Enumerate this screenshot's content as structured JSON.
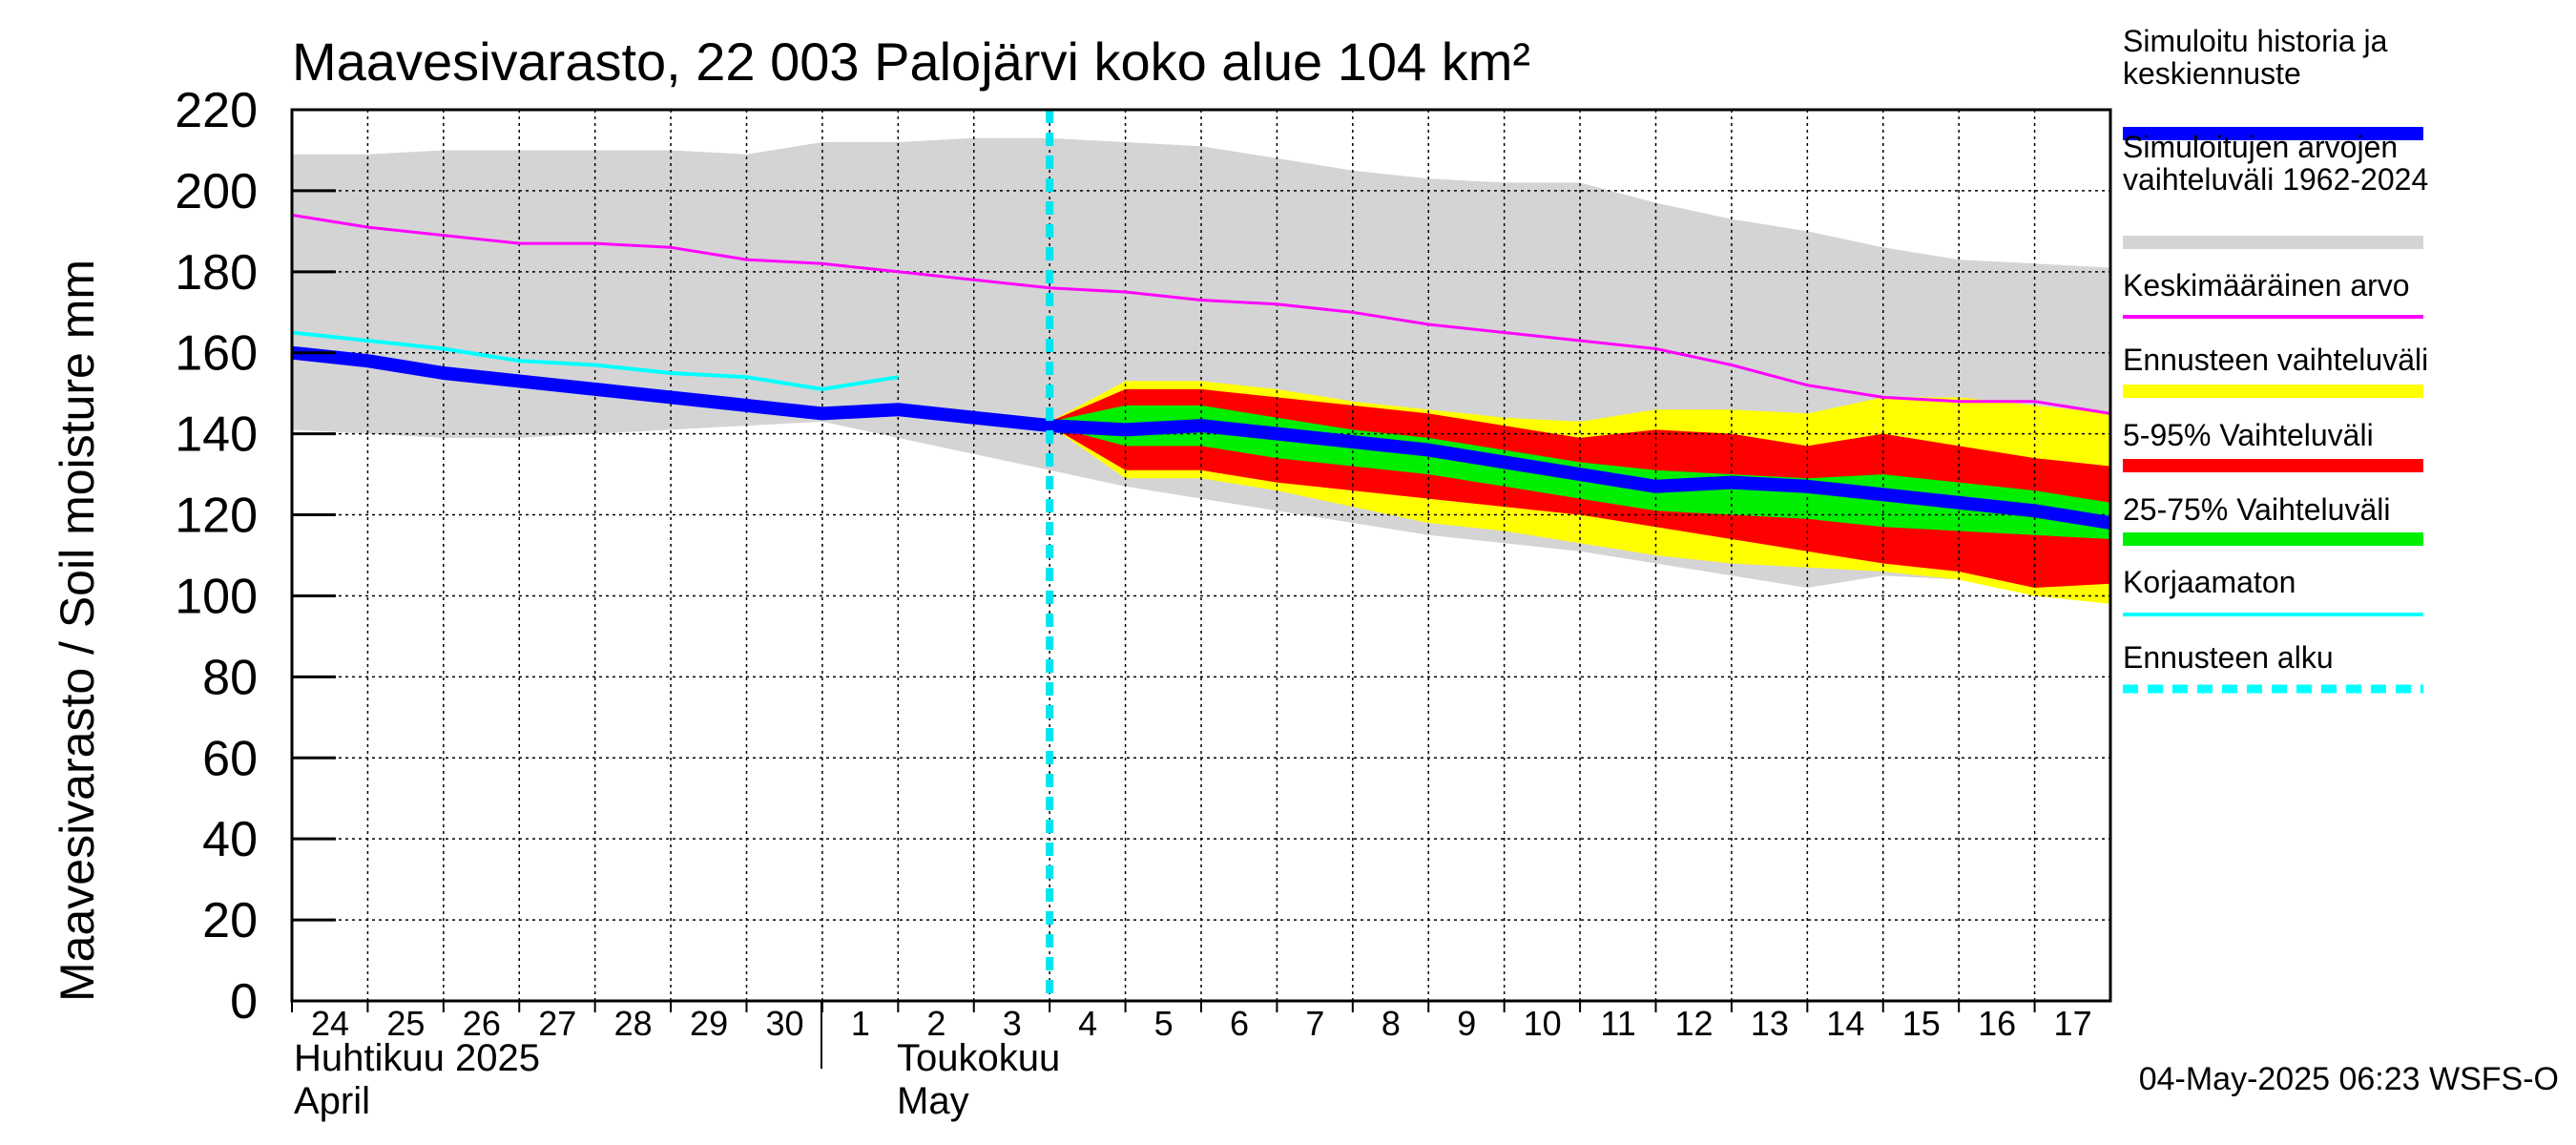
{
  "chart_data": {
    "type": "area",
    "title": "Maavesivarasto, 22 003 Palojärvi koko alue 104 km²",
    "ylabel": "Maavesivarasto / Soil moisture   mm",
    "ylim": [
      0,
      220
    ],
    "yticks": [
      0,
      20,
      40,
      60,
      80,
      100,
      120,
      140,
      160,
      180,
      200,
      220
    ],
    "x_day_range": [
      0,
      24
    ],
    "x_ticks": [
      {
        "day": 0,
        "label": "24"
      },
      {
        "day": 1,
        "label": "25"
      },
      {
        "day": 2,
        "label": "26"
      },
      {
        "day": 3,
        "label": "27"
      },
      {
        "day": 4,
        "label": "28"
      },
      {
        "day": 5,
        "label": "29"
      },
      {
        "day": 6,
        "label": "30"
      },
      {
        "day": 7,
        "label": "1"
      },
      {
        "day": 8,
        "label": "2"
      },
      {
        "day": 9,
        "label": "3"
      },
      {
        "day": 10,
        "label": "4"
      },
      {
        "day": 11,
        "label": "5"
      },
      {
        "day": 12,
        "label": "6"
      },
      {
        "day": 13,
        "label": "7"
      },
      {
        "day": 14,
        "label": "8"
      },
      {
        "day": 15,
        "label": "9"
      },
      {
        "day": 16,
        "label": "10"
      },
      {
        "day": 17,
        "label": "11"
      },
      {
        "day": 18,
        "label": "12"
      },
      {
        "day": 19,
        "label": "13"
      },
      {
        "day": 20,
        "label": "14"
      },
      {
        "day": 21,
        "label": "15"
      },
      {
        "day": 22,
        "label": "16"
      },
      {
        "day": 23,
        "label": "17"
      }
    ],
    "month_labels": {
      "april_fi": "Huhtikuu  2025",
      "april_en": "April",
      "may_fi": "Toukokuu",
      "may_en": "May"
    },
    "forecast_start_day": 10,
    "series": [
      {
        "name": "Simuloitujen arvojen vaihteluväli 1962-2024",
        "kind": "band",
        "color": "#d4d4d4",
        "x": [
          0,
          1,
          2,
          3,
          4,
          5,
          6,
          7,
          8,
          9,
          10,
          11,
          12,
          13,
          14,
          15,
          16,
          17,
          18,
          19,
          20,
          21,
          22,
          23,
          24
        ],
        "upper": [
          209,
          209,
          210,
          210,
          210,
          210,
          209,
          212,
          212,
          213,
          213,
          212,
          211,
          208,
          205,
          203,
          202,
          202,
          197,
          193,
          190,
          186,
          183,
          182,
          181
        ],
        "lower": [
          141,
          140,
          139,
          139,
          140,
          141,
          142,
          143,
          139,
          135,
          131,
          127,
          124,
          121,
          118,
          115,
          113,
          111,
          108,
          105,
          102,
          105,
          104,
          103,
          103
        ]
      },
      {
        "name": "Ennusteen vaihteluväli",
        "kind": "band",
        "color": "#ffff00",
        "x": [
          10,
          11,
          12,
          13,
          14,
          15,
          16,
          17,
          18,
          19,
          20,
          21,
          22,
          23,
          24
        ],
        "upper": [
          143,
          153,
          153,
          151,
          148,
          146,
          144,
          143,
          146,
          146,
          145,
          149,
          149,
          147,
          145
        ],
        "lower": [
          142,
          129,
          129,
          126,
          122,
          118,
          116,
          113,
          110,
          108,
          107,
          106,
          104,
          100,
          98
        ]
      },
      {
        "name": "5-95% Vaihteluväli",
        "kind": "band",
        "color": "#ff0000",
        "x": [
          10,
          11,
          12,
          13,
          14,
          15,
          16,
          17,
          18,
          19,
          20,
          21,
          22,
          23,
          24
        ],
        "upper": [
          143,
          151,
          151,
          149,
          147,
          145,
          142,
          139,
          141,
          140,
          137,
          140,
          137,
          134,
          132
        ],
        "lower": [
          142,
          131,
          131,
          128,
          126,
          124,
          122,
          120,
          117,
          114,
          111,
          108,
          106,
          102,
          103
        ]
      },
      {
        "name": "25-75% Vaihteluväli",
        "kind": "band",
        "color": "#00ee00",
        "x": [
          10,
          11,
          12,
          13,
          14,
          15,
          16,
          17,
          18,
          19,
          20,
          21,
          22,
          23,
          24
        ],
        "upper": [
          143,
          147,
          147,
          144,
          141,
          139,
          136,
          133,
          131,
          130,
          129,
          130,
          128,
          126,
          123
        ],
        "lower": [
          142,
          137,
          137,
          134,
          132,
          130,
          127,
          124,
          121,
          120,
          119,
          117,
          116,
          115,
          114
        ]
      },
      {
        "name": "Keskimääräinen arvo",
        "kind": "line",
        "color": "#ff00ff",
        "width": 3,
        "x": [
          0,
          1,
          2,
          3,
          4,
          5,
          6,
          7,
          8,
          9,
          10,
          11,
          12,
          13,
          14,
          15,
          16,
          17,
          18,
          19,
          20,
          21,
          22,
          23,
          24
        ],
        "y": [
          194,
          191,
          189,
          187,
          187,
          186,
          183,
          182,
          180,
          178,
          176,
          175,
          173,
          172,
          170,
          167,
          165,
          163,
          161,
          157,
          152,
          149,
          148,
          148,
          145
        ]
      },
      {
        "name": "Korjaamaton",
        "kind": "line",
        "color": "#00ffff",
        "width": 4,
        "x": [
          0,
          1,
          2,
          3,
          4,
          5,
          6,
          7,
          8
        ],
        "y": [
          165,
          163,
          161,
          158,
          157,
          155,
          154,
          151,
          154
        ]
      },
      {
        "name": "Simuloitu historia ja keskiennuste",
        "kind": "line",
        "color": "#0000ff",
        "width": 14,
        "x": [
          0,
          1,
          2,
          3,
          4,
          5,
          6,
          7,
          8,
          9,
          10,
          11,
          12,
          13,
          14,
          15,
          16,
          17,
          18,
          19,
          20,
          21,
          22,
          23,
          24
        ],
        "y": [
          160,
          158,
          155,
          153,
          151,
          149,
          147,
          145,
          146,
          144,
          142,
          141,
          142,
          140,
          138,
          136,
          133,
          130,
          127,
          128,
          127,
          125,
          123,
          121,
          118
        ]
      }
    ],
    "legend": [
      {
        "label": "Simuloitu historia ja keskiennuste",
        "color": "#0000ff",
        "style": "thick"
      },
      {
        "label": "Simuloitujen arvojen vaihteluväli 1962-2024",
        "color": "#d4d4d4",
        "style": "thick"
      },
      {
        "label": "Keskimääräinen arvo",
        "color": "#ff00ff",
        "style": "thin"
      },
      {
        "label": "Ennusteen vaihteluväli",
        "color": "#ffff00",
        "style": "thick"
      },
      {
        "label": "5-95% Vaihteluväli",
        "color": "#ff0000",
        "style": "thick"
      },
      {
        "label": "25-75% Vaihteluväli",
        "color": "#00ee00",
        "style": "thick"
      },
      {
        "label": "Korjaamaton",
        "color": "#00ffff",
        "style": "thin"
      },
      {
        "label": "Ennusteen alku",
        "color": "#00ffff",
        "style": "dashed"
      }
    ],
    "footer": "04-May-2025 06:23 WSFS-O"
  }
}
